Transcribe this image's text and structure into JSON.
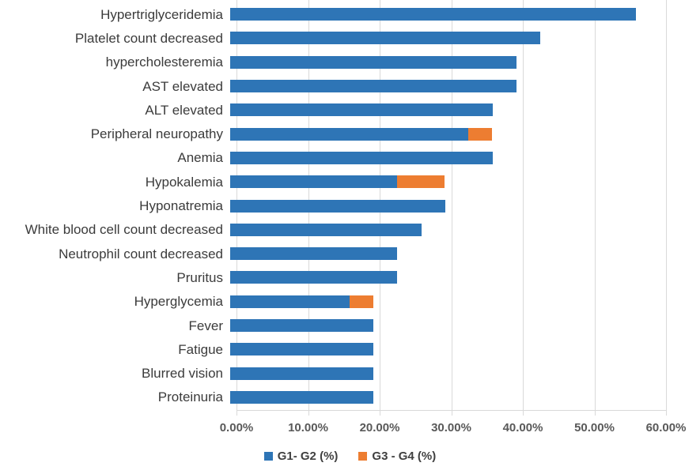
{
  "colors": {
    "series_blue": "#2E75B6",
    "series_orange": "#ED7D31",
    "gridline": "#D9D9D9",
    "axis_line": "#D9D9D9",
    "category_text": "#3B3B3B",
    "tick_text": "#595959",
    "legend_text": "#404040",
    "background": "#FFFFFF"
  },
  "chart_data": {
    "type": "bar",
    "orientation": "horizontal",
    "stacked": true,
    "title": "",
    "xlabel": "",
    "ylabel": "",
    "xlim": [
      0,
      60
    ],
    "x_tick_step": 10,
    "x_ticks": [
      "0.00%",
      "10.00%",
      "20.00%",
      "30.00%",
      "40.00%",
      "50.00%",
      "60.00%"
    ],
    "grid": "vertical",
    "legend_position": "bottom",
    "categories": [
      "Hypertriglyceridemia",
      "Platelet count decreased",
      "hypercholesteremia",
      "AST elevated",
      "ALT elevated",
      "Peripheral neuropathy",
      "Anemia",
      "Hypokalemia",
      "Hyponatremia",
      "White blood cell count decreased",
      "Neutrophil count decreased",
      "Pruritus",
      "Hyperglycemia",
      "Fever",
      "Fatigue",
      "Blurred vision",
      "Proteinuria"
    ],
    "series": [
      {
        "name": "G1- G2 (%)",
        "color": "#2E75B6",
        "values": [
          56.7,
          43.3,
          40.0,
          40.0,
          36.7,
          33.3,
          36.7,
          23.3,
          30.0,
          26.7,
          23.3,
          23.3,
          16.7,
          20.0,
          20.0,
          20.0,
          20.0
        ]
      },
      {
        "name": "G3 - G4 (%)",
        "color": "#ED7D31",
        "values": [
          0,
          0,
          0,
          0,
          0,
          3.3,
          0,
          6.7,
          0,
          0,
          0,
          0,
          3.3,
          0,
          0,
          0,
          0
        ]
      }
    ]
  }
}
